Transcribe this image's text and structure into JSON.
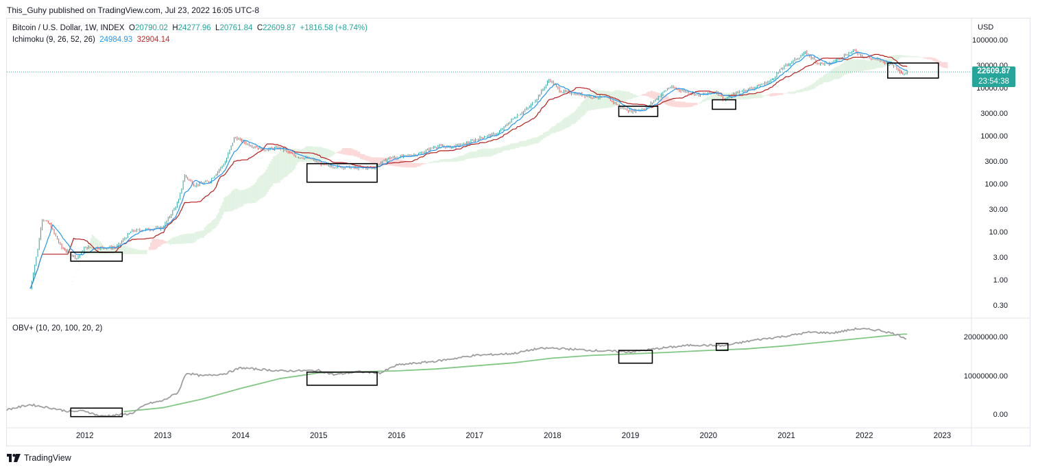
{
  "publisher_line": "This_Guhy published on TradingView.com, Jul 23, 2022 16:05 UTC-8",
  "legend": {
    "symbol": "Bitcoin / U.S. Dollar, 1W, INDEX",
    "o_label": "O",
    "o_value": "20790.02",
    "h_label": "H",
    "h_value": "24277.96",
    "l_label": "L",
    "l_value": "20761.84",
    "c_label": "C",
    "c_value": "22609.87",
    "change": "+1816.58 (+8.74%)",
    "ichimoku_label": "Ichimoku (9, 26, 52, 26)",
    "ichimoku_v1": "24984.93",
    "ichimoku_v2": "32904.14",
    "obv_label": "OBV+ (10, 20, 100, 20, 2)"
  },
  "price_axis": {
    "unit": "USD",
    "ticks": [
      "100000.00",
      "30000.00",
      "10000.00",
      "3000.00",
      "1000.00",
      "300.00",
      "100.00",
      "30.00",
      "10.00",
      "3.00",
      "1.00",
      "0.30"
    ]
  },
  "obv_axis": {
    "ticks": [
      "20000000.00",
      "10000000.00",
      "0.00"
    ]
  },
  "time_axis": {
    "ticks": [
      "2012",
      "2013",
      "2014",
      "2015",
      "2016",
      "2017",
      "2018",
      "2019",
      "2020",
      "2021",
      "2022",
      "2023"
    ]
  },
  "last_price_badge": {
    "price": "22609.87",
    "countdown": "23:54:38"
  },
  "branding": "TradingView",
  "colors": {
    "up": "#26a69a",
    "down": "#ef5350",
    "tenkan": "#2196f3",
    "kijun": "#b71c1c",
    "obv": "#9e9e9e",
    "obv_ma": "#81c784",
    "kumo_bear": "#fbd9d9",
    "kumo_bull": "#e3f3e3"
  },
  "chart_data": [
    {
      "type": "line",
      "title": "Bitcoin / U.S. Dollar, 1W, INDEX",
      "scale": "log",
      "ylim": [
        0.2,
        150000
      ],
      "series": [
        {
          "name": "Price",
          "x": [
            2011.3,
            2011.4,
            2011.45,
            2011.55,
            2011.7,
            2011.9,
            2012.0,
            2012.2,
            2012.4,
            2012.6,
            2012.8,
            2013.0,
            2013.2,
            2013.28,
            2013.4,
            2013.6,
            2013.8,
            2013.92,
            2014.1,
            2014.3,
            2014.5,
            2014.7,
            2014.9,
            2015.1,
            2015.3,
            2015.5,
            2015.7,
            2015.9,
            2016.1,
            2016.3,
            2016.5,
            2016.7,
            2016.9,
            2017.1,
            2017.3,
            2017.5,
            2017.7,
            2017.8,
            2017.96,
            2018.1,
            2018.3,
            2018.5,
            2018.7,
            2018.9,
            2019.0,
            2019.2,
            2019.4,
            2019.5,
            2019.7,
            2019.9,
            2020.1,
            2020.2,
            2020.4,
            2020.6,
            2020.8,
            2020.95,
            2021.1,
            2021.25,
            2021.4,
            2021.55,
            2021.7,
            2021.87,
            2022.0,
            2022.2,
            2022.4,
            2022.5,
            2022.55
          ],
          "y": [
            0.7,
            5,
            20,
            15,
            5,
            3,
            5,
            5,
            5,
            11,
            12,
            13,
            45,
            160,
            100,
            120,
            300,
            1000,
            700,
            550,
            600,
            400,
            350,
            250,
            240,
            230,
            230,
            370,
            400,
            450,
            650,
            620,
            750,
            1000,
            1200,
            2500,
            4200,
            6500,
            16000,
            9000,
            8000,
            7000,
            6500,
            4000,
            3500,
            4000,
            8000,
            11000,
            9000,
            7500,
            9000,
            6000,
            9000,
            11000,
            15000,
            28000,
            40000,
            58000,
            35000,
            33000,
            47000,
            64000,
            46000,
            40000,
            30000,
            20000,
            22600
          ]
        },
        {
          "name": "OBV",
          "x": [
            2011.0,
            2011.3,
            2011.6,
            2011.8,
            2012.0,
            2012.2,
            2012.4,
            2012.6,
            2012.8,
            2013.0,
            2013.2,
            2013.3,
            2013.5,
            2013.8,
            2014.0,
            2014.5,
            2015.0,
            2015.2,
            2015.5,
            2015.8,
            2016.0,
            2016.5,
            2017.0,
            2017.5,
            2017.8,
            2018.0,
            2018.5,
            2019.0,
            2019.4,
            2019.8,
            2020.2,
            2020.6,
            2021.0,
            2021.3,
            2021.6,
            2021.9,
            2022.2,
            2022.4,
            2022.55
          ],
          "y": [
            1500000,
            2800000,
            1800000,
            1000000,
            1200000,
            -200000,
            100000,
            500000,
            3000000,
            3800000,
            6000000,
            11000000,
            10200000,
            10800000,
            12300000,
            11500000,
            11600000,
            10500000,
            11300000,
            11000000,
            13000000,
            14000000,
            15500000,
            16000000,
            17200000,
            17400000,
            16800000,
            16400000,
            17400000,
            18200000,
            18000000,
            19500000,
            20500000,
            21500000,
            21300000,
            22400000,
            22000000,
            21000000,
            19800000
          ]
        }
      ],
      "xlabel": "",
      "ylabel": ""
    },
    {
      "type": "line",
      "title": "OBV+ (10, 20, 100, 20, 2)",
      "ylim": [
        -1000000,
        23000000
      ],
      "series": [
        {
          "name": "OBV",
          "x": [
            2011.0,
            2011.3,
            2011.6,
            2011.8,
            2012.0,
            2012.2,
            2012.4,
            2012.6,
            2012.8,
            2013.0,
            2013.2,
            2013.3,
            2013.5,
            2013.8,
            2014.0,
            2014.5,
            2015.0,
            2015.2,
            2015.5,
            2015.8,
            2016.0,
            2016.5,
            2017.0,
            2017.5,
            2017.8,
            2018.0,
            2018.5,
            2019.0,
            2019.4,
            2019.8,
            2020.2,
            2020.6,
            2021.0,
            2021.3,
            2021.6,
            2021.9,
            2022.2,
            2022.4,
            2022.55
          ],
          "y": [
            1500000,
            2800000,
            1800000,
            1000000,
            1200000,
            -200000,
            100000,
            500000,
            3000000,
            3800000,
            6000000,
            11000000,
            10200000,
            10800000,
            12300000,
            11500000,
            11600000,
            10500000,
            11300000,
            11000000,
            13000000,
            14000000,
            15500000,
            16000000,
            17200000,
            17400000,
            16800000,
            16400000,
            17400000,
            18200000,
            18000000,
            19500000,
            20500000,
            21500000,
            21300000,
            22400000,
            22000000,
            21000000,
            19800000
          ]
        },
        {
          "name": "OBV MA",
          "x": [
            2012.5,
            2013.0,
            2013.5,
            2014.0,
            2014.5,
            2015.0,
            2015.5,
            2016.0,
            2016.5,
            2017.0,
            2017.5,
            2018.0,
            2018.5,
            2019.0,
            2019.5,
            2020.0,
            2020.5,
            2021.0,
            2021.5,
            2022.0,
            2022.5,
            2022.55
          ],
          "y": [
            1000000,
            2000000,
            4200000,
            7000000,
            9500000,
            11000000,
            11300000,
            11500000,
            12000000,
            12800000,
            13600000,
            14800000,
            15500000,
            15900000,
            16300000,
            16800000,
            17200000,
            18000000,
            19000000,
            20000000,
            21000000,
            21000000
          ]
        }
      ]
    }
  ]
}
